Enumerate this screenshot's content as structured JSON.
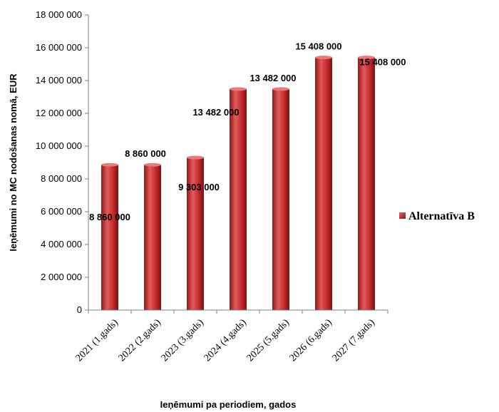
{
  "chart_data": {
    "type": "bar",
    "categories": [
      "2021 (1.gads)",
      "2022 (2.gads)",
      "2023 (3.gads)",
      "2024 (4.gads)",
      "2025 (5.gads)",
      "2026 (6.gads)",
      "2027 (7.gads)"
    ],
    "series": [
      {
        "name": "Alternatīva B",
        "values": [
          8860000,
          8860000,
          9303000,
          13482000,
          13482000,
          15408000,
          15408000
        ],
        "labels": [
          "8 860 000",
          "8 860 000",
          "9 303 000",
          "13 482 000",
          "13 482 000",
          "15 408 000",
          "15 408 000"
        ]
      }
    ],
    "xlabel": "Ieņēmumi pa periodiem, gados",
    "ylabel": "Ieņēmumi no MC nodošanas nomā, EUR",
    "ylim": [
      0,
      18000000
    ],
    "yticks": [
      0,
      2000000,
      4000000,
      6000000,
      8000000,
      10000000,
      12000000,
      14000000,
      16000000,
      18000000
    ],
    "ytick_labels": [
      "0",
      "2 000 000",
      "4 000 000",
      "6 000 000",
      "8 000 000",
      "10 000 000",
      "12 000 000",
      "14 000 000",
      "16 000 000",
      "18 000 000"
    ],
    "grid": false,
    "legend": "right",
    "colors": {
      "bar_light": "#e06060",
      "bar_mid": "#c0282b",
      "bar_dark": "#7a1216"
    }
  }
}
